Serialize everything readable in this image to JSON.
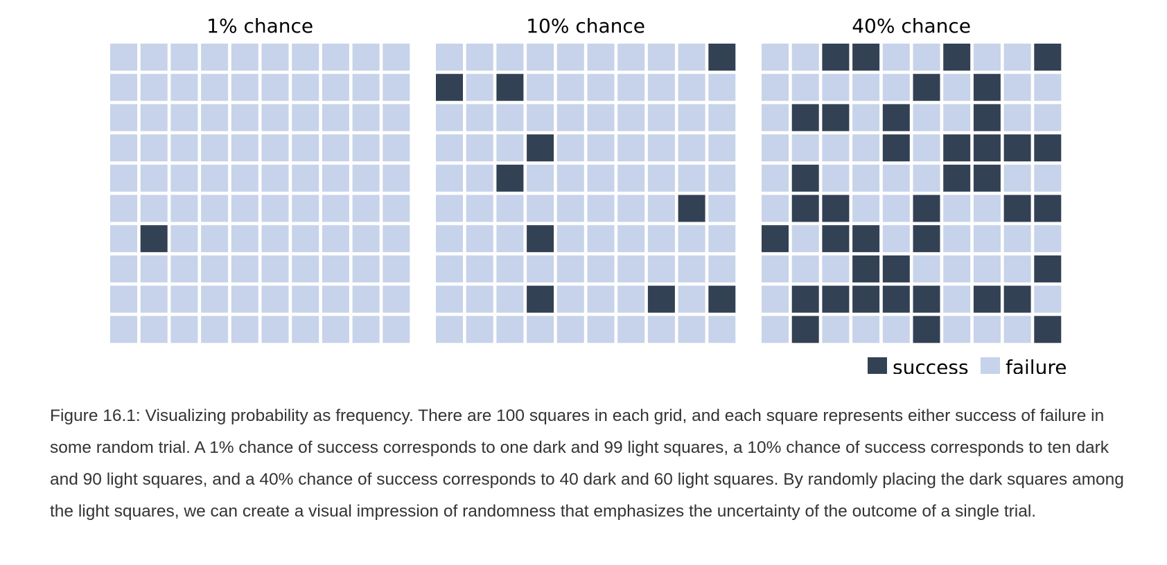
{
  "colors": {
    "success": "#334155",
    "failure": "#c6d3ea"
  },
  "chart_data": [
    {
      "type": "waffle",
      "title": "1% chance",
      "rows": 10,
      "cols": 10,
      "success_cells": [
        [
          6,
          1
        ]
      ]
    },
    {
      "type": "waffle",
      "title": "10% chance",
      "rows": 10,
      "cols": 10,
      "success_cells": [
        [
          0,
          9
        ],
        [
          1,
          0
        ],
        [
          1,
          2
        ],
        [
          3,
          3
        ],
        [
          4,
          2
        ],
        [
          5,
          8
        ],
        [
          6,
          3
        ],
        [
          8,
          3
        ],
        [
          8,
          7
        ],
        [
          8,
          9
        ]
      ]
    },
    {
      "type": "waffle",
      "title": "40% chance",
      "rows": 10,
      "cols": 10,
      "success_cells": [
        [
          0,
          2
        ],
        [
          0,
          3
        ],
        [
          0,
          6
        ],
        [
          0,
          9
        ],
        [
          1,
          5
        ],
        [
          1,
          7
        ],
        [
          2,
          1
        ],
        [
          2,
          2
        ],
        [
          2,
          4
        ],
        [
          2,
          7
        ],
        [
          3,
          4
        ],
        [
          3,
          6
        ],
        [
          3,
          7
        ],
        [
          3,
          8
        ],
        [
          3,
          9
        ],
        [
          4,
          1
        ],
        [
          4,
          6
        ],
        [
          4,
          7
        ],
        [
          5,
          1
        ],
        [
          5,
          2
        ],
        [
          5,
          5
        ],
        [
          5,
          8
        ],
        [
          5,
          9
        ],
        [
          6,
          0
        ],
        [
          6,
          2
        ],
        [
          6,
          3
        ],
        [
          6,
          5
        ],
        [
          7,
          3
        ],
        [
          7,
          4
        ],
        [
          7,
          9
        ],
        [
          8,
          1
        ],
        [
          8,
          2
        ],
        [
          8,
          3
        ],
        [
          8,
          4
        ],
        [
          8,
          5
        ],
        [
          8,
          7
        ],
        [
          8,
          8
        ],
        [
          9,
          1
        ],
        [
          9,
          5
        ],
        [
          9,
          9
        ]
      ]
    }
  ],
  "legend": {
    "success_label": "success",
    "failure_label": "failure"
  },
  "caption": "Figure 16.1: Visualizing probability as frequency. There are 100 squares in each grid, and each square represents either success of failure in some random trial. A 1% chance of success corresponds to one dark and 99 light squares, a 10% chance of success corresponds to ten dark and 90 light squares, and a 40% chance of success corresponds to 40 dark and 60 light squares. By randomly placing the dark squares among the light squares, we can create a visual impression of randomness that emphasizes the uncertainty of the outcome of a single trial."
}
